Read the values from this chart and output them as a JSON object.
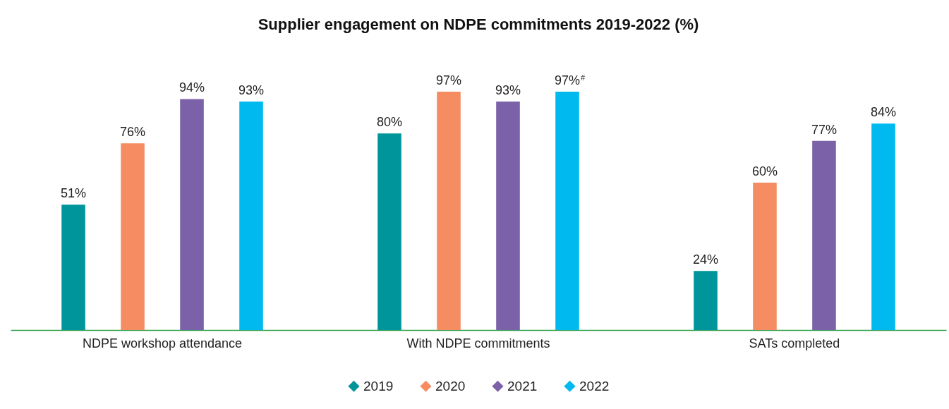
{
  "chart_data": {
    "type": "bar",
    "title": "Supplier engagement on NDPE commitments 2019-2022 (%)",
    "categories": [
      "NDPE workshop attendance",
      "With NDPE commitments",
      "SATs completed"
    ],
    "series": [
      {
        "name": "2019",
        "color": "#00959a",
        "values": [
          51,
          80,
          24
        ],
        "value_labels": [
          "51%",
          "80%",
          "24%"
        ]
      },
      {
        "name": "2020",
        "color": "#f68d62",
        "values": [
          76,
          97,
          60
        ],
        "value_labels": [
          "76%",
          "97%",
          "60%"
        ]
      },
      {
        "name": "2021",
        "color": "#7b61a8",
        "values": [
          94,
          93,
          77
        ],
        "value_labels": [
          "94%",
          "93%",
          "77%"
        ]
      },
      {
        "name": "2022",
        "color": "#00b9ef",
        "values": [
          93,
          97,
          84
        ],
        "value_labels": [
          "93%",
          "97%$^{#}$",
          "84%"
        ]
      }
    ],
    "legend": "bottom",
    "grid": false
  }
}
